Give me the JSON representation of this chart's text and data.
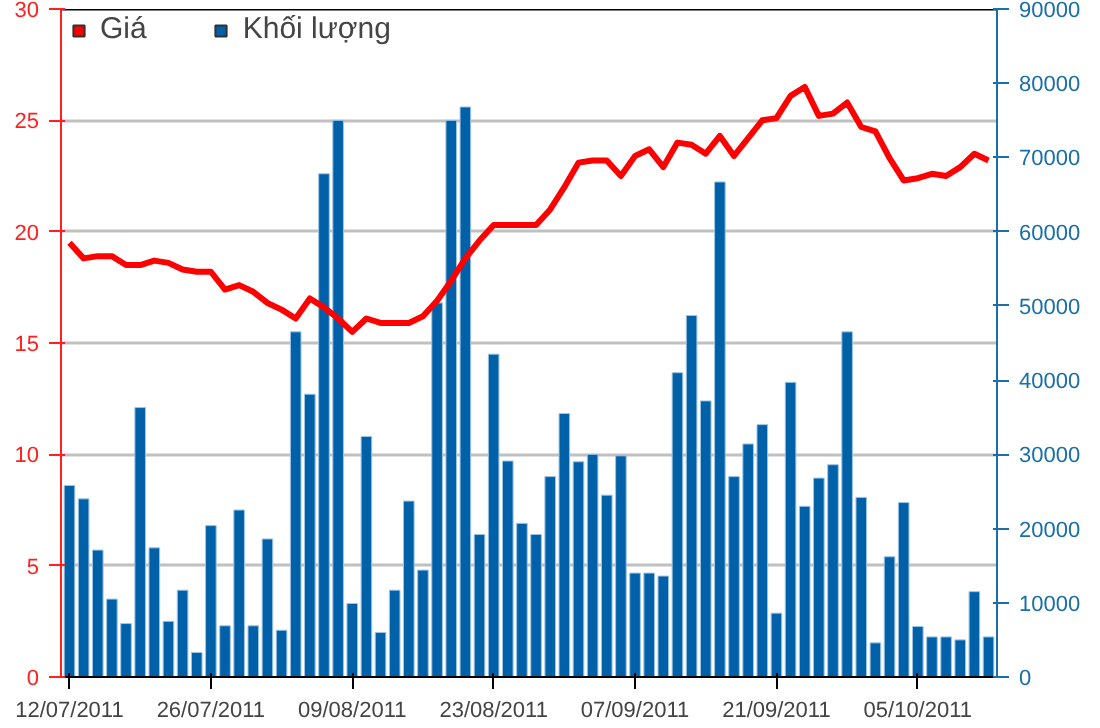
{
  "chart_data": {
    "type": "bar",
    "categories": [
      "12/07/2011",
      null,
      null,
      null,
      null,
      null,
      null,
      null,
      null,
      null,
      "26/07/2011",
      null,
      null,
      null,
      null,
      null,
      null,
      null,
      null,
      null,
      "09/08/2011",
      null,
      null,
      null,
      null,
      null,
      null,
      null,
      null,
      null,
      "23/08/2011",
      null,
      null,
      null,
      null,
      null,
      null,
      null,
      null,
      null,
      "07/09/2011",
      null,
      null,
      null,
      null,
      null,
      null,
      null,
      null,
      null,
      "21/09/2011",
      null,
      null,
      null,
      null,
      null,
      null,
      null,
      null,
      null,
      "05/10/2011",
      null,
      null,
      null,
      null,
      null
    ],
    "series": [
      {
        "name": "Giá",
        "type": "line",
        "color": "#ff0000",
        "values": [
          19.5,
          18.8,
          18.9,
          18.9,
          18.5,
          18.5,
          18.7,
          18.6,
          18.3,
          18.2,
          18.2,
          17.4,
          17.6,
          17.3,
          16.8,
          16.5,
          16.1,
          17.0,
          16.6,
          16.1,
          15.5,
          16.1,
          15.9,
          15.9,
          15.9,
          16.2,
          16.9,
          17.8,
          18.8,
          19.6,
          20.3,
          20.3,
          20.3,
          20.3,
          21.0,
          22.0,
          23.1,
          23.2,
          23.2,
          22.5,
          23.4,
          23.7,
          22.9,
          24.0,
          23.9,
          23.5,
          24.3,
          23.4,
          24.2,
          25.0,
          25.1,
          26.1,
          26.5,
          25.2,
          25.3,
          25.8,
          24.7,
          24.5,
          23.3,
          22.3,
          22.4,
          22.6,
          22.5,
          22.9,
          23.5,
          23.2
        ]
      },
      {
        "name": "Khối lượng",
        "axis": "y2",
        "color": "#0060a8",
        "values": [
          25800,
          24000,
          17100,
          10500,
          7200,
          36300,
          17400,
          7500,
          11700,
          3300,
          20400,
          6900,
          22500,
          6900,
          18600,
          6300,
          46500,
          38100,
          67800,
          75000,
          9900,
          32400,
          6000,
          11700,
          23700,
          14400,
          50400,
          75000,
          76800,
          19200,
          43500,
          29100,
          20700,
          19200,
          27000,
          35500,
          29000,
          30000,
          24500,
          29800,
          14000,
          14000,
          13600,
          41000,
          48700,
          37200,
          66700,
          27000,
          31400,
          34000,
          8600,
          39700,
          23000,
          26800,
          28600,
          46500,
          24200,
          4600,
          16200,
          23500,
          6800,
          5400,
          5400,
          5000,
          11500,
          5400
        ]
      }
    ],
    "ylim": [
      0,
      30
    ],
    "yticks": [
      0,
      5,
      10,
      15,
      20,
      25,
      30
    ],
    "y2lim": [
      0,
      90000
    ],
    "y2ticks": [
      0,
      10000,
      20000,
      30000,
      40000,
      50000,
      60000,
      70000,
      80000,
      90000
    ],
    "grid": "y",
    "legend": "top left"
  }
}
